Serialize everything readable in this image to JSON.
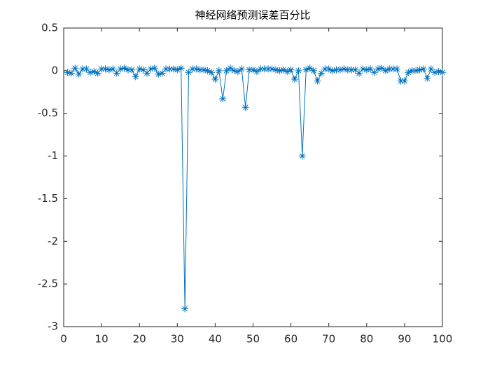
{
  "chart_data": {
    "type": "line",
    "title": "神经网络预测误差百分比",
    "color": "#0072bd",
    "marker": "*",
    "x": [
      1,
      2,
      3,
      4,
      5,
      6,
      7,
      8,
      9,
      10,
      11,
      12,
      13,
      14,
      15,
      16,
      17,
      18,
      19,
      20,
      21,
      22,
      23,
      24,
      25,
      26,
      27,
      28,
      29,
      30,
      31,
      32,
      33,
      34,
      35,
      36,
      37,
      38,
      39,
      40,
      41,
      42,
      43,
      44,
      45,
      46,
      47,
      48,
      49,
      50,
      51,
      52,
      53,
      54,
      55,
      56,
      57,
      58,
      59,
      60,
      61,
      62,
      63,
      64,
      65,
      66,
      67,
      68,
      69,
      70,
      71,
      72,
      73,
      74,
      75,
      76,
      77,
      78,
      79,
      80,
      81,
      82,
      83,
      84,
      85,
      86,
      87,
      88,
      89,
      90,
      91,
      92,
      93,
      94,
      95,
      96,
      97,
      98,
      99,
      100
    ],
    "values": [
      -0.02,
      -0.03,
      0.03,
      -0.04,
      0.02,
      0.02,
      -0.02,
      -0.01,
      -0.03,
      0.02,
      0.02,
      0.01,
      0.02,
      -0.03,
      0.02,
      0.03,
      0.01,
      0.01,
      -0.07,
      0.02,
      0.01,
      -0.03,
      0.02,
      0.03,
      -0.04,
      -0.03,
      0.02,
      0.02,
      0.02,
      0.01,
      0.03,
      -2.79,
      -0.02,
      0.02,
      0.02,
      0.01,
      0.01,
      0,
      -0.02,
      -0.1,
      0,
      -0.33,
      0,
      0.03,
      0,
      -0.01,
      0.02,
      -0.43,
      0.01,
      0.01,
      -0.01,
      0.02,
      0.02,
      0.02,
      0.02,
      0.01,
      0,
      0.01,
      -0.01,
      0.01,
      -0.1,
      0,
      -1.0,
      0.01,
      0.03,
      0,
      -0.12,
      -0.03,
      0.02,
      0.02,
      0,
      0.01,
      0.01,
      0.02,
      0.01,
      0.01,
      0.01,
      -0.03,
      0.02,
      0.01,
      0.02,
      -0.02,
      0.02,
      0.03,
      0,
      0.02,
      0.02,
      0.02,
      -0.12,
      -0.12,
      -0.02,
      0,
      0,
      0.01,
      0.02,
      -0.09,
      0.02,
      -0.02,
      -0.01,
      -0.02
    ],
    "xlim": [
      0,
      100
    ],
    "xticks": [
      0,
      10,
      20,
      30,
      40,
      50,
      60,
      70,
      80,
      90,
      100
    ],
    "ylim": [
      -3,
      0.5
    ],
    "yticks": [
      0.5,
      0,
      -0.5,
      -1,
      -1.5,
      -2,
      -2.5,
      -3
    ],
    "grid": false
  }
}
